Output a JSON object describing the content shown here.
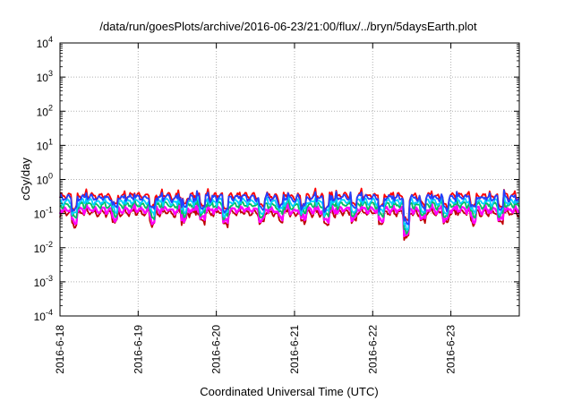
{
  "chart_data": {
    "type": "line",
    "title": "/data/run/goesPlots/archive/2016-06-23/21:00/flux/../bryn/5daysEarth.plot",
    "xlabel": "Coordinated Universal Time (UTC)",
    "ylabel": "cGy/day",
    "yscale": "log",
    "ylim": [
      0.0001,
      10000
    ],
    "y_ticks": [
      {
        "base": "10",
        "exp": "-4",
        "value": 0.0001
      },
      {
        "base": "10",
        "exp": "-3",
        "value": 0.001
      },
      {
        "base": "10",
        "exp": "-2",
        "value": 0.01
      },
      {
        "base": "10",
        "exp": "-1",
        "value": 0.1
      },
      {
        "base": "10",
        "exp": "0",
        "value": 1
      },
      {
        "base": "10",
        "exp": "1",
        "value": 10
      },
      {
        "base": "10",
        "exp": "2",
        "value": 100
      },
      {
        "base": "10",
        "exp": "3",
        "value": 1000
      },
      {
        "base": "10",
        "exp": "4",
        "value": 10000
      }
    ],
    "xlim": [
      "2016-06-18",
      "2016-06-23 21:00"
    ],
    "x_ticks": [
      "2016-6-18",
      "2016-6-19",
      "2016-6-20",
      "2016-6-21",
      "2016-6-22",
      "2016-6-23"
    ],
    "grid": true,
    "series": [
      {
        "color": "#ff0000",
        "base": 0.33,
        "dip": 0.22
      },
      {
        "color": "#2040ff",
        "base": 0.29,
        "dip": 0.17
      },
      {
        "color": "#00d0ff",
        "base": 0.22,
        "dip": 0.14
      },
      {
        "color": "#00c060",
        "base": 0.175,
        "dip": 0.11
      },
      {
        "color": "#ff00ff",
        "base": 0.128,
        "dip": 0.075
      },
      {
        "color": "#c00000",
        "base": 0.105,
        "dip": 0.085
      }
    ],
    "dips": [
      {
        "t": 0.03,
        "f": 0.45
      },
      {
        "t": 0.12,
        "f": 0.55
      },
      {
        "t": 0.2,
        "f": 0.5
      },
      {
        "t": 0.27,
        "f": 0.55
      },
      {
        "t": 0.31,
        "f": 0.6
      },
      {
        "t": 0.36,
        "f": 0.45
      },
      {
        "t": 0.44,
        "f": 0.5
      },
      {
        "t": 0.48,
        "f": 0.55
      },
      {
        "t": 0.53,
        "f": 0.55
      },
      {
        "t": 0.58,
        "f": 0.5
      },
      {
        "t": 0.64,
        "f": 0.55
      },
      {
        "t": 0.7,
        "f": 0.5
      },
      {
        "t": 0.755,
        "f": 0.2
      },
      {
        "t": 0.79,
        "f": 0.55
      },
      {
        "t": 0.84,
        "f": 0.5
      },
      {
        "t": 0.9,
        "f": 0.55
      },
      {
        "t": 0.96,
        "f": 0.5
      }
    ]
  }
}
